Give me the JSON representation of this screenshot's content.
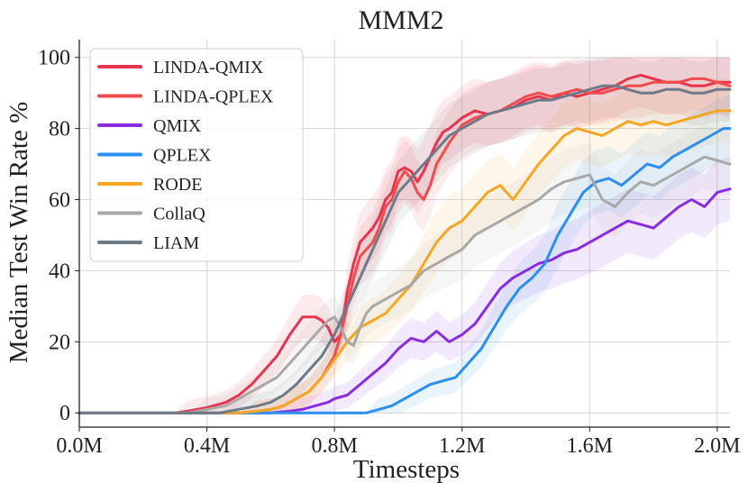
{
  "chart_data": {
    "type": "line",
    "title": "MMM2",
    "xlabel": "Timesteps",
    "ylabel": "Median Test Win Rate %",
    "xlim": [
      0,
      2.04
    ],
    "ylim": [
      -4,
      105
    ],
    "xticks": [
      0.0,
      0.4,
      0.8,
      1.2,
      1.6,
      2.0
    ],
    "xtick_labels": [
      "0.0M",
      "0.4M",
      "0.8M",
      "1.2M",
      "1.6M",
      "2.0M"
    ],
    "yticks": [
      0,
      20,
      40,
      60,
      80,
      100
    ],
    "ytick_labels": [
      "0",
      "20",
      "40",
      "60",
      "80",
      "100"
    ],
    "grid": true,
    "legend": "top-left",
    "series": [
      {
        "name": "LINDA-QMIX",
        "color": "#e8334f",
        "x": [
          0,
          0.3,
          0.34,
          0.4,
          0.46,
          0.5,
          0.54,
          0.58,
          0.62,
          0.66,
          0.7,
          0.72,
          0.74,
          0.76,
          0.78,
          0.8,
          0.82,
          0.84,
          0.86,
          0.88,
          0.9,
          0.92,
          0.94,
          0.96,
          0.98,
          1.0,
          1.02,
          1.04,
          1.06,
          1.08,
          1.1,
          1.12,
          1.14,
          1.16,
          1.2,
          1.24,
          1.28,
          1.32,
          1.36,
          1.4,
          1.44,
          1.48,
          1.52,
          1.56,
          1.6,
          1.64,
          1.68,
          1.72,
          1.76,
          1.8,
          1.84,
          1.88,
          1.92,
          1.96,
          2.0,
          2.04
        ],
        "y": [
          0,
          0,
          0.5,
          1.5,
          3,
          5,
          8,
          12,
          16,
          22,
          27,
          27,
          27,
          26,
          24,
          20,
          22,
          34,
          42,
          48,
          50,
          52,
          55,
          60,
          62,
          68,
          69,
          68,
          65,
          68,
          72,
          76,
          79,
          80,
          83,
          85,
          84,
          85,
          86,
          88,
          89,
          88,
          90,
          89,
          90,
          91,
          92,
          94,
          95,
          94,
          93,
          93,
          92,
          92,
          93,
          93
        ]
      },
      {
        "name": "LINDA-QPLEX",
        "color": "#f24b4b",
        "x": [
          0,
          0.4,
          0.5,
          0.56,
          0.6,
          0.64,
          0.68,
          0.72,
          0.76,
          0.8,
          0.82,
          0.84,
          0.86,
          0.88,
          0.9,
          0.92,
          0.94,
          0.96,
          0.98,
          1.0,
          1.02,
          1.04,
          1.06,
          1.08,
          1.1,
          1.12,
          1.16,
          1.2,
          1.24,
          1.28,
          1.32,
          1.36,
          1.4,
          1.44,
          1.48,
          1.52,
          1.56,
          1.6,
          1.64,
          1.68,
          1.72,
          1.76,
          1.8,
          1.84,
          1.88,
          1.92,
          1.96,
          2.0,
          2.04
        ],
        "y": [
          0,
          0,
          0,
          0.5,
          1,
          2,
          4,
          6,
          10,
          16,
          22,
          30,
          38,
          44,
          46,
          48,
          52,
          58,
          60,
          65,
          68,
          66,
          62,
          60,
          64,
          70,
          76,
          81,
          83,
          84,
          85,
          87,
          89,
          90,
          89,
          90,
          91,
          90,
          90,
          91,
          92,
          92,
          93,
          93,
          93,
          94,
          94,
          93,
          92
        ]
      },
      {
        "name": "QMIX",
        "color": "#8a2be2",
        "x": [
          0,
          0.6,
          0.66,
          0.7,
          0.74,
          0.78,
          0.8,
          0.84,
          0.88,
          0.92,
          0.96,
          1.0,
          1.04,
          1.08,
          1.12,
          1.16,
          1.2,
          1.24,
          1.28,
          1.32,
          1.36,
          1.4,
          1.44,
          1.48,
          1.52,
          1.56,
          1.6,
          1.64,
          1.68,
          1.72,
          1.76,
          1.8,
          1.84,
          1.88,
          1.92,
          1.96,
          2.0,
          2.04
        ],
        "y": [
          0,
          0,
          0.5,
          1,
          2,
          3,
          4,
          5,
          8,
          11,
          14,
          18,
          21,
          20,
          23,
          20,
          22,
          25,
          30,
          35,
          38,
          40,
          42,
          43,
          45,
          46,
          48,
          50,
          52,
          54,
          53,
          52,
          55,
          58,
          60,
          58,
          62,
          63
        ]
      },
      {
        "name": "QPLEX",
        "color": "#2b8ff0",
        "x": [
          0,
          0.9,
          0.94,
          0.98,
          1.02,
          1.06,
          1.1,
          1.14,
          1.18,
          1.22,
          1.26,
          1.3,
          1.34,
          1.38,
          1.42,
          1.46,
          1.5,
          1.54,
          1.58,
          1.62,
          1.66,
          1.7,
          1.74,
          1.78,
          1.82,
          1.86,
          1.9,
          1.94,
          1.98,
          2.02,
          2.04
        ],
        "y": [
          0,
          0,
          1,
          2,
          4,
          6,
          8,
          9,
          10,
          14,
          18,
          24,
          30,
          35,
          38,
          42,
          50,
          56,
          62,
          65,
          66,
          64,
          67,
          70,
          69,
          72,
          74,
          76,
          78,
          80,
          80
        ]
      },
      {
        "name": "RODE",
        "color": "#f5a623",
        "x": [
          0,
          0.5,
          0.56,
          0.6,
          0.64,
          0.68,
          0.72,
          0.76,
          0.8,
          0.84,
          0.88,
          0.92,
          0.96,
          1.0,
          1.04,
          1.08,
          1.12,
          1.16,
          1.2,
          1.24,
          1.28,
          1.32,
          1.36,
          1.4,
          1.44,
          1.48,
          1.52,
          1.56,
          1.6,
          1.64,
          1.68,
          1.72,
          1.76,
          1.8,
          1.84,
          1.88,
          1.92,
          1.96,
          2.0,
          2.04
        ],
        "y": [
          0,
          0,
          0.5,
          1,
          2,
          4,
          6,
          10,
          15,
          20,
          24,
          26,
          28,
          32,
          36,
          42,
          48,
          52,
          54,
          58,
          62,
          64,
          60,
          65,
          70,
          74,
          78,
          80,
          79,
          78,
          80,
          82,
          81,
          82,
          81,
          82,
          83,
          84,
          85,
          85
        ]
      },
      {
        "name": "CollaQ",
        "color": "#a8a8a8",
        "x": [
          0,
          0.34,
          0.4,
          0.46,
          0.5,
          0.54,
          0.58,
          0.62,
          0.66,
          0.7,
          0.74,
          0.78,
          0.8,
          0.82,
          0.84,
          0.86,
          0.88,
          0.9,
          0.92,
          0.96,
          1.0,
          1.04,
          1.08,
          1.12,
          1.16,
          1.2,
          1.24,
          1.28,
          1.32,
          1.36,
          1.4,
          1.44,
          1.48,
          1.52,
          1.56,
          1.6,
          1.64,
          1.68,
          1.72,
          1.76,
          1.8,
          1.84,
          1.88,
          1.92,
          1.96,
          2.0,
          2.04
        ],
        "y": [
          0,
          0,
          1,
          2,
          4,
          6,
          8,
          10,
          14,
          18,
          22,
          26,
          27,
          24,
          20,
          19,
          24,
          28,
          30,
          32,
          34,
          36,
          40,
          42,
          44,
          46,
          50,
          52,
          54,
          56,
          58,
          60,
          63,
          65,
          66,
          67,
          60,
          58,
          62,
          65,
          64,
          66,
          68,
          70,
          72,
          71,
          70
        ]
      },
      {
        "name": "LIAM",
        "color": "#6d7a8a",
        "x": [
          0,
          0.44,
          0.5,
          0.56,
          0.6,
          0.64,
          0.68,
          0.72,
          0.76,
          0.8,
          0.84,
          0.88,
          0.92,
          0.96,
          1.0,
          1.04,
          1.08,
          1.12,
          1.16,
          1.2,
          1.24,
          1.28,
          1.32,
          1.36,
          1.4,
          1.44,
          1.48,
          1.52,
          1.56,
          1.6,
          1.64,
          1.68,
          1.72,
          1.76,
          1.8,
          1.84,
          1.88,
          1.92,
          1.96,
          2.0,
          2.04
        ],
        "y": [
          0,
          0,
          1,
          2,
          3,
          5,
          8,
          12,
          16,
          22,
          30,
          38,
          46,
          54,
          62,
          66,
          70,
          74,
          78,
          80,
          82,
          84,
          85,
          86,
          87,
          88,
          88,
          89,
          90,
          91,
          92,
          92,
          91,
          90,
          90,
          91,
          91,
          90,
          90,
          91,
          91
        ]
      }
    ]
  }
}
